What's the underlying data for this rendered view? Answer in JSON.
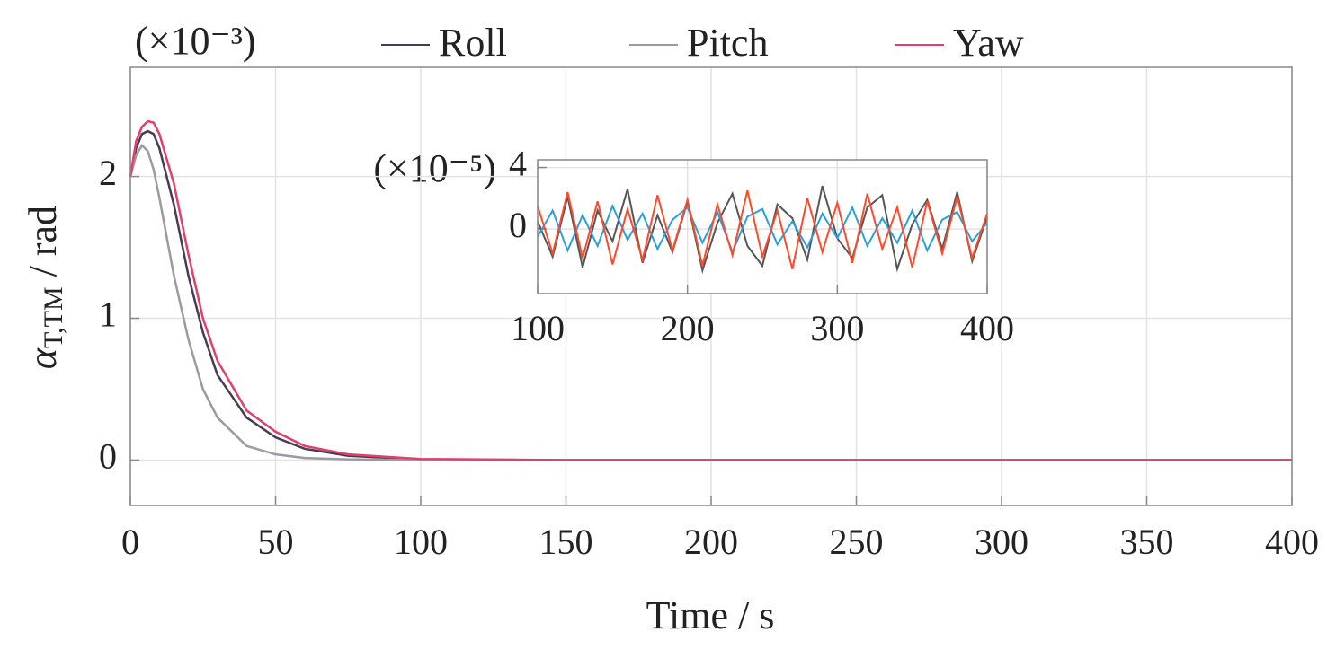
{
  "chart_data": [
    {
      "type": "line",
      "y_multiplier": "(×10⁻³)",
      "ylabel": {
        "symbol": "α",
        "subscript": "T,TM",
        "unit": " / rad"
      },
      "xlabel": "Time / s",
      "legend": "top",
      "grid": true,
      "xlim": [
        0,
        400
      ],
      "xticks": [
        0,
        50,
        100,
        150,
        200,
        250,
        300,
        350,
        400
      ],
      "ylim": [
        -0.32,
        2.77
      ],
      "yticks": [
        0,
        1,
        2
      ],
      "x": [
        0,
        2,
        4,
        6,
        8,
        10,
        15,
        20,
        25,
        30,
        40,
        50,
        60,
        75,
        100,
        150,
        200,
        300,
        400
      ],
      "series": [
        {
          "name": "Roll",
          "color": "#4a3a55",
          "values": [
            2.0,
            2.2,
            2.3,
            2.32,
            2.3,
            2.2,
            1.8,
            1.3,
            0.9,
            0.6,
            0.3,
            0.16,
            0.08,
            0.03,
            0.005,
            0,
            0,
            0,
            0
          ]
        },
        {
          "name": "Pitch",
          "color": "#9a9aa6",
          "values": [
            2.0,
            2.15,
            2.22,
            2.18,
            2.05,
            1.85,
            1.3,
            0.85,
            0.5,
            0.3,
            0.1,
            0.04,
            0.015,
            0.005,
            0,
            0,
            0,
            0,
            0
          ]
        },
        {
          "name": "Yaw",
          "color": "#e0406a",
          "values": [
            2.0,
            2.25,
            2.35,
            2.39,
            2.38,
            2.3,
            1.95,
            1.45,
            1.0,
            0.7,
            0.35,
            0.2,
            0.1,
            0.04,
            0.008,
            0,
            0,
            0,
            0
          ]
        }
      ]
    },
    {
      "type": "line",
      "y_multiplier": "(×10⁻⁵)",
      "grid": true,
      "xlim": [
        100,
        400
      ],
      "xticks": [
        100,
        200,
        300,
        400
      ],
      "ylim": [
        -4.2,
        4.5
      ],
      "yticks": [
        0,
        4
      ],
      "x": [
        100,
        110,
        120,
        130,
        140,
        150,
        160,
        170,
        180,
        190,
        200,
        210,
        220,
        230,
        240,
        250,
        260,
        270,
        280,
        290,
        300,
        310,
        320,
        330,
        340,
        350,
        360,
        370,
        380,
        390,
        400
      ],
      "series": [
        {
          "name": "Roll",
          "color": "#555555",
          "values": [
            0.5,
            -1.8,
            2.1,
            -2.5,
            1.2,
            -0.8,
            2.6,
            -2.2,
            0.9,
            -1.5,
            1.8,
            -2.7,
            0.4,
            2.3,
            -1.1,
            -2.4,
            1.6,
            0.7,
            -2.0,
            2.8,
            -0.6,
            -1.9,
            1.4,
            2.2,
            -2.6,
            0.3,
            1.9,
            -1.3,
            2.4,
            -2.1,
            0.8
          ]
        },
        {
          "name": "Pitch",
          "color": "#2aa0d8",
          "values": [
            -0.5,
            1.2,
            -1.4,
            0.9,
            -1.1,
            1.5,
            -0.7,
            1.0,
            -1.3,
            0.6,
            1.4,
            -0.9,
            1.1,
            -1.5,
            0.8,
            1.3,
            -1.0,
            0.5,
            -1.2,
            1.0,
            -0.6,
            1.4,
            -1.1,
            0.7,
            -0.9,
            1.2,
            -1.4,
            0.6,
            1.1,
            -0.8,
            0.4
          ]
        },
        {
          "name": "Yaw",
          "color": "#ff4a2a",
          "values": [
            1.5,
            -1.6,
            2.4,
            -1.9,
            1.8,
            -2.3,
            1.3,
            -2.0,
            2.2,
            -1.4,
            1.9,
            -2.4,
            1.6,
            -1.7,
            2.5,
            -1.8,
            1.2,
            -2.6,
            2.0,
            -1.5,
            1.7,
            -2.2,
            2.3,
            -1.3,
            1.4,
            -2.5,
            1.8,
            -1.6,
            2.1,
            -1.9,
            1.0
          ]
        }
      ]
    }
  ]
}
